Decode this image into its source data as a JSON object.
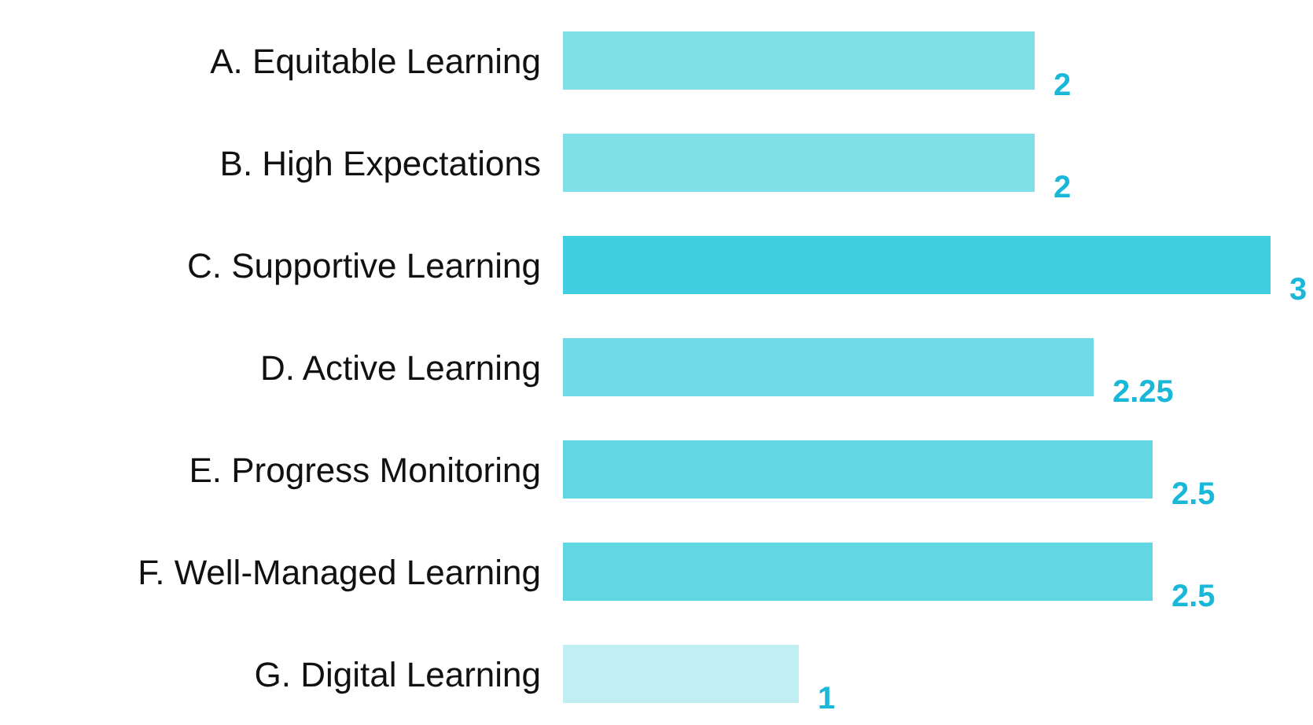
{
  "chart_data": {
    "type": "bar",
    "orientation": "horizontal",
    "categories": [
      "A. Equitable Learning",
      "B. High Expectations",
      "C. Supportive Learning",
      "D. Active Learning",
      "E. Progress Monitoring",
      "F. Well-Managed Learning",
      "G. Digital Learning"
    ],
    "values": [
      2,
      2,
      3,
      2.25,
      2.5,
      2.5,
      1
    ],
    "colors": [
      "#80e0e8",
      "#80e0e8",
      "#40cfe0",
      "#70dbe6",
      "#60d7e3",
      "#60d7e3",
      "#c0eef2"
    ],
    "data_labels": true,
    "grid": false,
    "legend": false
  }
}
